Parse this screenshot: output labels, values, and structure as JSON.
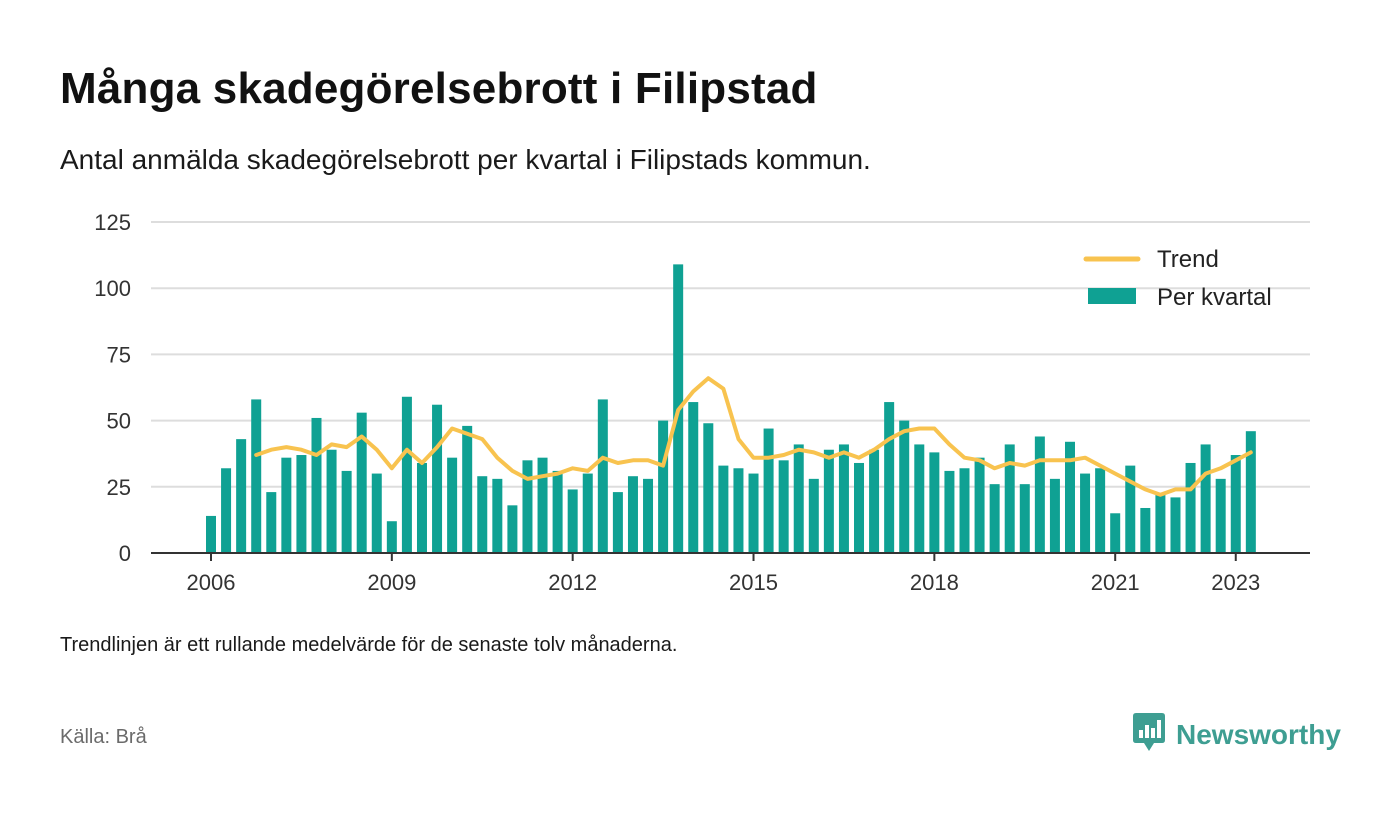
{
  "title": "Många skadegörelsebrott i Filipstad",
  "subtitle": "Antal anmälda skadegörelsebrott per kvartal i Filipstads kommun.",
  "footnote": "Trendlinjen är ett rullande medelvärde för de senaste tolv månaderna.",
  "source": "Källa: Brå",
  "brand": {
    "name": "Newsworthy",
    "logo_icon": "bar-chart-bubble-icon"
  },
  "colors": {
    "bars": "#0fa193",
    "trend": "#f8c34f",
    "grid": "#dddddd",
    "axis": "#333333",
    "brand": "#3e9e92"
  },
  "legend": {
    "trend": "Trend",
    "bars": "Per kvartal"
  },
  "chart_data": {
    "type": "bar",
    "x_unit": "quarter",
    "start_quarter": "2006-Q1",
    "ylim": [
      0,
      125
    ],
    "yticks": [
      0,
      25,
      50,
      75,
      100,
      125
    ],
    "xtick_labels": [
      "2006",
      "2009",
      "2012",
      "2015",
      "2018",
      "2021",
      "2023"
    ],
    "grid": true,
    "legend_position": "top-right",
    "series": [
      {
        "name": "Per kvartal",
        "kind": "bar",
        "values": [
          14,
          32,
          43,
          58,
          23,
          36,
          37,
          51,
          39,
          31,
          53,
          30,
          12,
          59,
          34,
          56,
          36,
          48,
          29,
          28,
          18,
          35,
          36,
          31,
          24,
          30,
          58,
          23,
          29,
          28,
          50,
          109,
          57,
          49,
          33,
          32,
          30,
          47,
          35,
          41,
          28,
          39,
          41,
          34,
          39,
          57,
          50,
          41,
          38,
          31,
          32,
          36,
          26,
          41,
          26,
          44,
          28,
          42,
          30,
          32,
          15,
          33,
          17,
          22,
          21,
          34,
          41,
          28,
          37,
          46
        ]
      },
      {
        "name": "Trend",
        "kind": "line",
        "values": [
          null,
          null,
          null,
          37,
          39,
          40,
          39,
          37,
          41,
          40,
          44,
          39,
          32,
          39,
          34,
          40,
          47,
          45,
          43,
          36,
          31,
          28,
          29,
          30,
          32,
          31,
          36,
          34,
          35,
          35,
          33,
          54,
          61,
          66,
          62,
          43,
          36,
          36,
          37,
          39,
          38,
          36,
          38,
          36,
          39,
          43,
          46,
          47,
          47,
          41,
          36,
          35,
          32,
          34,
          33,
          35,
          35,
          35,
          36,
          33,
          30,
          27,
          24,
          22,
          24,
          24,
          30,
          32,
          35,
          38
        ]
      }
    ]
  }
}
